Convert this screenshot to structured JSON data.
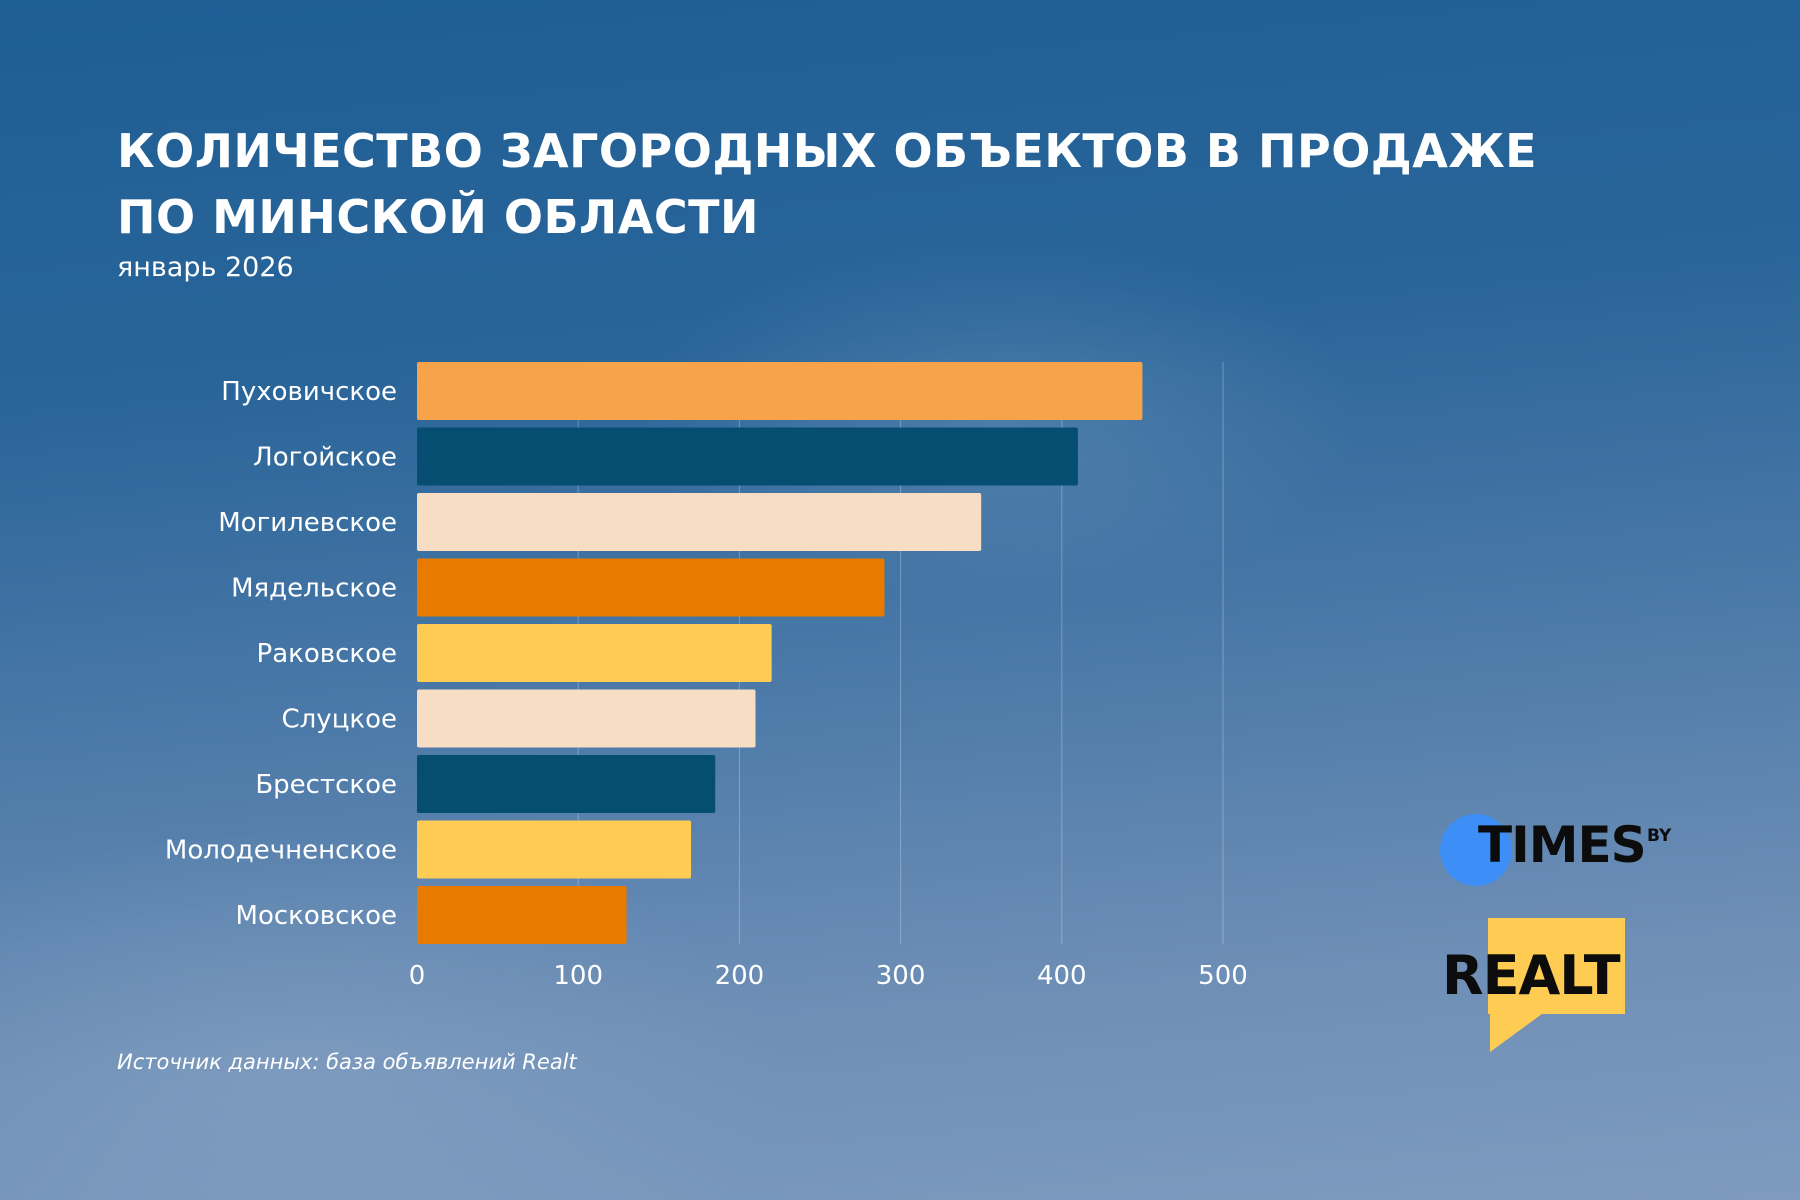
{
  "title_lines": [
    "КОЛИЧЕСТВО ЗАГОРОДНЫХ ОБЪЕКТОВ В ПРОДАЖЕ",
    "ПО МИНСКОЙ ОБЛАСТИ"
  ],
  "subtitle": "январь 2026",
  "source": "Источник данных: база объявлений Realt",
  "logos": {
    "times_word": "TIMES",
    "times_suffix": "BY",
    "realt_word": "REALT"
  },
  "colors": {
    "light_orange": "#f6a34a",
    "dark_teal": "#064d72",
    "peach": "#f7ddc3",
    "orange": "#e87a00",
    "yellow": "#fecc52",
    "times_blue": "#3d8ef6",
    "realt_yellow": "#fecc52"
  },
  "chart_data": {
    "type": "bar",
    "orientation": "horizontal",
    "title": "КОЛИЧЕСТВО ЗАГОРОДНЫХ ОБЪЕКТОВ В ПРОДАЖЕ ПО МИНСКОЙ ОБЛАСТИ",
    "subtitle": "январь 2026",
    "categories": [
      "Пуховичское",
      "Логойское",
      "Могилевское",
      "Мядельское",
      "Раковское",
      "Слуцкое",
      "Брестское",
      "Молодечненское",
      "Московское"
    ],
    "values": [
      450,
      410,
      350,
      290,
      220,
      210,
      185,
      170,
      130
    ],
    "bar_colors": [
      "#f6a34a",
      "#064d72",
      "#f7ddc3",
      "#e87a00",
      "#fecc52",
      "#f7ddc3",
      "#064d72",
      "#fecc52",
      "#e87a00"
    ],
    "xlim": [
      0,
      500
    ],
    "xticks": [
      0,
      100,
      200,
      300,
      400,
      500
    ],
    "xlabel": "",
    "ylabel": "",
    "grid": "vertical"
  }
}
